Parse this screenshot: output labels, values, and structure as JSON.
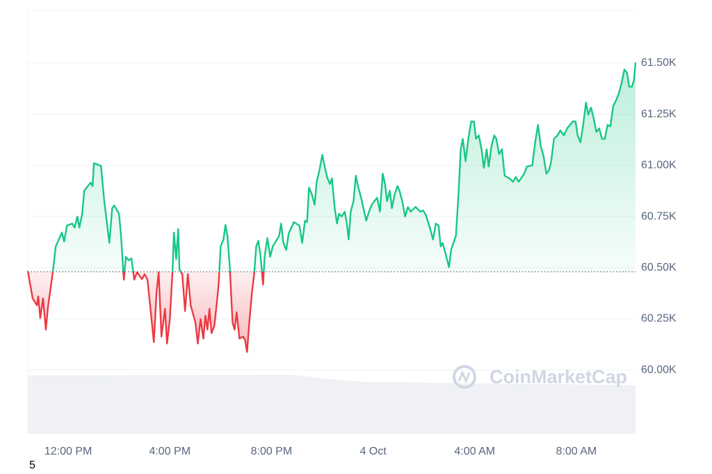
{
  "chart_data": {
    "type": "line",
    "watermark": "CoinMarketCap",
    "page_number": "5",
    "baseline": 60480,
    "color_up": "#16c784",
    "color_down": "#ea3943",
    "grid": true,
    "xlim": [
      10.41,
      34.33
    ],
    "ylim": [
      59688,
      61758
    ],
    "xticks": [
      {
        "value": 12,
        "label": "12:00 PM"
      },
      {
        "value": 16,
        "label": "4:00 PM"
      },
      {
        "value": 20,
        "label": "8:00 PM"
      },
      {
        "value": 24,
        "label": "4 Oct"
      },
      {
        "value": 28,
        "label": "4:00 AM"
      },
      {
        "value": 32,
        "label": "8:00 AM"
      }
    ],
    "yticks": [
      {
        "value": 60000,
        "label": "60.00K"
      },
      {
        "value": 60250,
        "label": "60.25K"
      },
      {
        "value": 60500,
        "label": "60.50K"
      },
      {
        "value": 60750,
        "label": "60.75K"
      },
      {
        "value": 61000,
        "label": "61.00K"
      },
      {
        "value": 61250,
        "label": "61.25K"
      },
      {
        "value": 61500,
        "label": "61.50K"
      }
    ],
    "x": [
      10.41,
      10.6,
      10.77,
      10.82,
      10.9,
      11.01,
      11.12,
      11.21,
      11.29,
      11.4,
      11.51,
      11.75,
      11.84,
      11.95,
      12.16,
      12.25,
      12.36,
      12.44,
      12.55,
      12.63,
      12.88,
      12.96,
      13.01,
      13.29,
      13.42,
      13.62,
      13.73,
      13.81,
      14.0,
      14.08,
      14.19,
      14.27,
      14.38,
      14.49,
      14.6,
      14.71,
      14.9,
      15.01,
      15.12,
      15.23,
      15.37,
      15.48,
      15.56,
      15.67,
      15.81,
      15.89,
      16.0,
      16.11,
      16.16,
      16.25,
      16.33,
      16.38,
      16.49,
      16.6,
      16.71,
      16.82,
      17.01,
      17.1,
      17.21,
      17.32,
      17.4,
      17.48,
      17.56,
      17.64,
      17.75,
      17.84,
      17.92,
      18.0,
      18.11,
      18.19,
      18.27,
      18.36,
      18.47,
      18.55,
      18.63,
      18.74,
      18.88,
      18.96,
      19.04,
      19.12,
      19.23,
      19.32,
      19.4,
      19.48,
      19.56,
      19.67,
      19.73,
      19.84,
      19.95,
      20.05,
      20.3,
      20.38,
      20.47,
      20.58,
      20.68,
      20.88,
      21.1,
      21.21,
      21.32,
      21.4,
      21.48,
      21.59,
      21.7,
      21.78,
      21.89,
      22.0,
      22.08,
      22.19,
      22.3,
      22.38,
      22.49,
      22.58,
      22.66,
      22.77,
      22.88,
      22.96,
      23.04,
      23.12,
      23.23,
      23.32,
      23.42,
      23.53,
      23.62,
      23.73,
      23.84,
      23.95,
      24.05,
      24.16,
      24.27,
      24.38,
      24.47,
      24.55,
      24.66,
      24.74,
      24.85,
      24.96,
      25.04,
      25.15,
      25.26,
      25.37,
      25.48,
      25.67,
      25.86,
      25.97,
      26.08,
      26.25,
      26.36,
      26.47,
      26.58,
      26.66,
      26.74,
      26.85,
      26.99,
      27.07,
      27.26,
      27.37,
      27.45,
      27.53,
      27.64,
      27.75,
      27.86,
      27.97,
      28.05,
      28.16,
      28.27,
      28.36,
      28.47,
      28.55,
      28.66,
      28.77,
      28.85,
      28.96,
      29.07,
      29.18,
      29.4,
      29.51,
      29.62,
      29.73,
      29.95,
      30.05,
      30.27,
      30.38,
      30.49,
      30.6,
      30.71,
      30.82,
      30.93,
      31.01,
      31.12,
      31.26,
      31.37,
      31.51,
      31.64,
      31.75,
      31.86,
      31.97,
      32.05,
      32.16,
      32.27,
      32.38,
      32.47,
      32.58,
      32.68,
      32.79,
      32.9,
      33.01,
      33.12,
      33.23,
      33.34,
      33.45,
      33.56,
      33.67,
      33.78,
      33.89,
      34.0,
      34.08,
      34.19,
      34.27,
      34.33
    ],
    "values": [
      60485,
      60350,
      60316,
      60360,
      60254,
      60350,
      60197,
      60316,
      60383,
      60485,
      60604,
      60672,
      60628,
      60706,
      60716,
      60696,
      60750,
      60696,
      60764,
      60876,
      60916,
      60899,
      61011,
      60998,
      60825,
      60621,
      60791,
      60804,
      60764,
      60655,
      60441,
      60553,
      60536,
      60546,
      60441,
      60478,
      60444,
      60468,
      60441,
      60309,
      60136,
      60383,
      60478,
      60163,
      60299,
      60129,
      60248,
      60492,
      60672,
      60543,
      60689,
      60492,
      60468,
      60288,
      60468,
      60316,
      60231,
      60129,
      60248,
      60153,
      60265,
      60197,
      60299,
      60180,
      60214,
      60316,
      60417,
      60604,
      60638,
      60709,
      60655,
      60502,
      60231,
      60197,
      60282,
      60153,
      60163,
      60146,
      60088,
      60220,
      60377,
      60468,
      60604,
      60631,
      60570,
      60417,
      60553,
      60645,
      60553,
      60604,
      60655,
      60716,
      60621,
      60587,
      60668,
      60723,
      60706,
      60621,
      60730,
      60723,
      60892,
      60859,
      60808,
      60920,
      60977,
      61052,
      61004,
      60943,
      60909,
      60937,
      60791,
      60716,
      60764,
      60750,
      60774,
      60723,
      60638,
      60774,
      60825,
      60950,
      60892,
      60842,
      60791,
      60730,
      60774,
      60808,
      60825,
      60842,
      60774,
      60960,
      60909,
      60825,
      60876,
      60791,
      60859,
      60899,
      60876,
      60825,
      60750,
      60797,
      60774,
      60797,
      60774,
      60780,
      60757,
      60689,
      60638,
      60716,
      60706,
      60604,
      60621,
      60570,
      60502,
      60587,
      60655,
      60876,
      61079,
      61130,
      61021,
      61130,
      61215,
      61215,
      61130,
      61147,
      61079,
      60988,
      61079,
      60994,
      61096,
      61147,
      61130,
      61055,
      61079,
      60950,
      60933,
      60920,
      60943,
      60920,
      60960,
      60994,
      61001,
      61113,
      61198,
      61096,
      61045,
      60960,
      60977,
      61021,
      61130,
      61147,
      61171,
      61147,
      61181,
      61198,
      61215,
      61215,
      61147,
      61113,
      61198,
      61307,
      61249,
      61283,
      61232,
      61164,
      61181,
      61130,
      61130,
      61198,
      61191,
      61290,
      61317,
      61351,
      61402,
      61469,
      61452,
      61385,
      61385,
      61419,
      61503
    ]
  }
}
